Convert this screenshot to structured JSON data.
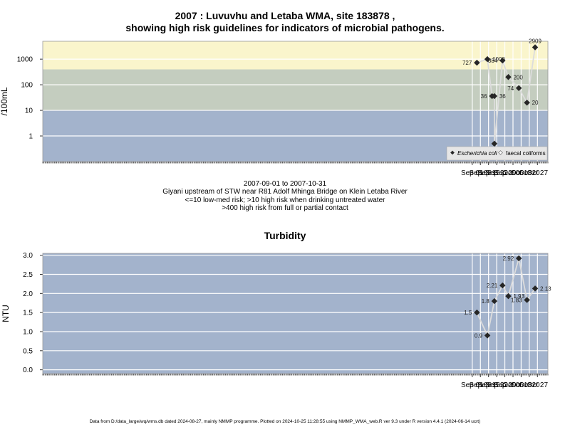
{
  "chart_data": [
    {
      "type": "line",
      "title_line1": "2007 : Luvuvhu and Letaba WMA, site 183878 ,",
      "title_line2": "showing high risk guidelines for indicators of microbial pathogens.",
      "ylabel": "/100mL",
      "y_scale": "log10",
      "ylim": [
        0.1,
        5000
      ],
      "y_ticks": [
        "1",
        "10",
        "100",
        "1000"
      ],
      "x_ticks": [
        "Sep 01",
        "Sep 08",
        "Sep 15",
        "Sep 22",
        "Sep 29",
        "Oct 06",
        "Oct 13",
        "Oct 20",
        "Oct 27"
      ],
      "x_tick_dates": [
        "2007-09-01",
        "2007-09-08",
        "2007-09-15",
        "2007-09-22",
        "2007-09-29",
        "2007-10-06",
        "2007-10-13",
        "2007-10-20",
        "2007-10-27"
      ],
      "xlim": [
        "2006-08-28",
        "2007-11-05"
      ],
      "bands": [
        {
          "from": 0.1,
          "to": 10,
          "color": "#a3b3cc"
        },
        {
          "from": 10,
          "to": 400,
          "color": "#c4cdbf"
        },
        {
          "from": 400,
          "to": 5000,
          "color": "#faf5cc"
        }
      ],
      "grid": true,
      "series": [
        {
          "name": "Escherichia coli",
          "points": [
            {
              "x": "2007-09-05",
              "y": 727,
              "label": "727"
            },
            {
              "x": "2007-09-14",
              "y": 1000,
              "label": "1000"
            },
            {
              "x": "2007-09-18",
              "y": 36,
              "label": "36"
            },
            {
              "x": "2007-09-20",
              "y": 36,
              "label": "36"
            },
            {
              "x": "2007-09-20",
              "y": 0.5,
              "label": "0"
            },
            {
              "x": "2007-09-27",
              "y": 884,
              "label": "884"
            },
            {
              "x": "2007-10-02",
              "y": 200,
              "label": "200"
            },
            {
              "x": "2007-10-11",
              "y": 74,
              "label": "74"
            },
            {
              "x": "2007-10-18",
              "y": 20,
              "label": "20"
            },
            {
              "x": "2007-10-25",
              "y": 2909,
              "label": "2909"
            }
          ]
        }
      ],
      "legend": {
        "position": "bottom-right",
        "entries": [
          "Escherichia coli",
          "faecal coliforms"
        ]
      }
    },
    {
      "type": "line",
      "title": "Turbidity",
      "ylabel": "NTU",
      "ylim": [
        -0.1,
        3.05
      ],
      "y_ticks": [
        "0.0",
        "0.5",
        "1.0",
        "1.5",
        "2.0",
        "2.5",
        "3.0"
      ],
      "x_ticks": [
        "Sep 01",
        "Sep 08",
        "Sep 15",
        "Sep 22",
        "Sep 29",
        "Oct 06",
        "Oct 13",
        "Oct 20",
        "Oct 27"
      ],
      "x_tick_dates": [
        "2007-09-01",
        "2007-09-08",
        "2007-09-15",
        "2007-09-22",
        "2007-09-29",
        "2007-10-06",
        "2007-10-13",
        "2007-10-20",
        "2007-10-27"
      ],
      "xlim": [
        "2006-08-28",
        "2007-11-05"
      ],
      "background": "#a3b3cc",
      "grid": true,
      "series": [
        {
          "points": [
            {
              "x": "2007-09-05",
              "y": 1.5,
              "label": "1.5"
            },
            {
              "x": "2007-09-14",
              "y": 0.9,
              "label": "0.9"
            },
            {
              "x": "2007-09-20",
              "y": 1.8,
              "label": "1.8"
            },
            {
              "x": "2007-09-27",
              "y": 2.21,
              "label": "2.21"
            },
            {
              "x": "2007-10-02",
              "y": 1.93,
              "label": "1.93"
            },
            {
              "x": "2007-10-11",
              "y": 2.92,
              "label": "2.92"
            },
            {
              "x": "2007-10-18",
              "y": 1.83,
              "label": "1.83"
            },
            {
              "x": "2007-10-25",
              "y": 2.13,
              "label": "2.13"
            }
          ]
        }
      ]
    }
  ],
  "caption": {
    "date_range": "2007-09-01 to 2007-10-31",
    "site": "Giyani upstream of STW near R81 Adolf Mhinga Bridge on Klein Letaba River",
    "risk_low": "<=10 low-med risk; >10 high risk when drinking untreated water",
    "risk_high": ">400 high risk from full or partial contact"
  },
  "footer": "Data from D:/data_large/wq/wms.db dated 2024-08-27, mainly NMMP programme. Plotted on 2024-10-25 11:28:55 using NMMP_WMA_web.R ver 9.3 under R version 4.4.1 (2024-06-14 ucrt)"
}
